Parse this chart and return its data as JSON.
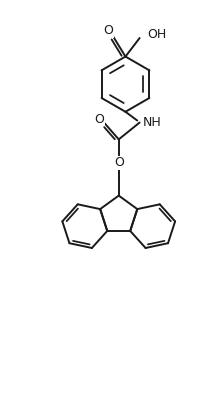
{
  "bg_color": "#ffffff",
  "line_color": "#1a1a1a",
  "line_width": 1.4,
  "font_size": 8.5,
  "figsize": [
    2.24,
    4.04
  ],
  "dpi": 100,
  "xlim": [
    -0.5,
    4.5
  ],
  "ylim": [
    -9.5,
    2.5
  ]
}
